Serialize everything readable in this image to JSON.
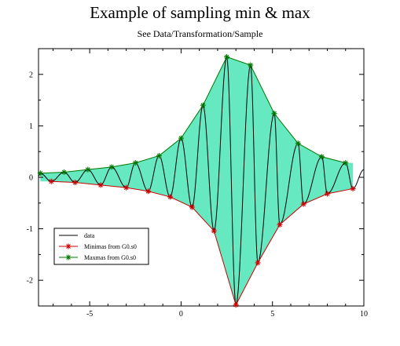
{
  "chart_data": {
    "type": "line",
    "title": "Example of sampling min & max",
    "subtitle": "See Data/Transformation/Sample",
    "xlabel": "",
    "ylabel": "",
    "xlim": [
      -7.8,
      10
    ],
    "ylim": [
      -2.5,
      2.5
    ],
    "x_ticks": [
      -5,
      0,
      5,
      10
    ],
    "y_ticks": [
      -2,
      -1,
      0,
      1,
      2
    ],
    "x_tick_labels": [
      "-5",
      "0",
      "5",
      "10"
    ],
    "y_tick_labels": [
      "-2",
      "-1",
      "0",
      "1",
      "2"
    ],
    "grid": false,
    "legend_position": "bottom-left",
    "fill_color": "#66e8c0",
    "series": [
      {
        "name": "data",
        "color": "#000000",
        "marker": "none",
        "description_values": "oscillating signal between the minima and maxima envelopes",
        "period": 1.4,
        "phase_x": 3.0,
        "x_range": [
          -7.8,
          10
        ]
      },
      {
        "name": "Minimas from G0.s0",
        "color": "#cc0000",
        "marker": "*",
        "x": [
          -7.1,
          -5.8,
          -4.4,
          -3.0,
          -1.8,
          -0.6,
          0.6,
          1.8,
          3.0,
          4.2,
          5.4,
          6.7,
          8.0,
          9.4
        ],
        "y": [
          -0.08,
          -0.1,
          -0.15,
          -0.2,
          -0.27,
          -0.38,
          -0.58,
          -1.04,
          -2.48,
          -1.66,
          -0.92,
          -0.52,
          -0.32,
          -0.22
        ]
      },
      {
        "name": "Maxmas from G0.s0",
        "color": "#007700",
        "marker": "*",
        "x": [
          -7.7,
          -6.4,
          -5.1,
          -3.8,
          -2.5,
          -1.2,
          0.0,
          1.2,
          2.5,
          3.8,
          5.1,
          6.4,
          7.7,
          9.0
        ],
        "y": [
          0.08,
          0.1,
          0.15,
          0.2,
          0.28,
          0.42,
          0.76,
          1.4,
          2.34,
          2.18,
          1.24,
          0.66,
          0.4,
          0.28
        ]
      }
    ],
    "legend": [
      {
        "label": "data",
        "color": "#000000",
        "marker": "none"
      },
      {
        "label": "Minimas from G0.s0",
        "color": "#cc0000",
        "marker": "*"
      },
      {
        "label": "Maxmas from G0.s0",
        "color": "#007700",
        "marker": "*"
      }
    ]
  }
}
